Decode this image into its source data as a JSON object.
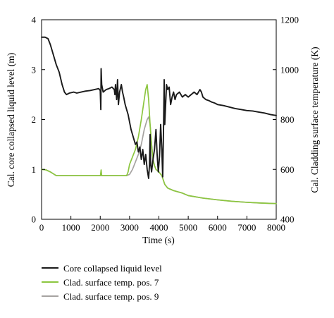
{
  "chart_data": {
    "type": "line",
    "xlabel": "Time (s)",
    "ylabel_left": "Cal. core collapsed liquid level (m)",
    "ylabel_right": "Cal. Cladding surface temperature (K)",
    "xlim": [
      0,
      8000
    ],
    "ylim_left": [
      0,
      4
    ],
    "ylim_right": [
      400,
      1200
    ],
    "x_ticks": [
      "0",
      "1000",
      "2000",
      "3000",
      "4000",
      "5000",
      "6000",
      "7000",
      "8000"
    ],
    "y_left_ticks": [
      "0",
      "1",
      "2",
      "3",
      "4"
    ],
    "y_right_ticks": [
      "400",
      "600",
      "800",
      "1000",
      "1200"
    ],
    "grid": false,
    "legend_position": "below",
    "series": [
      {
        "name": "Core collapsed liquid level",
        "axis": "left",
        "color": "#1a1a1a",
        "points": [
          [
            0,
            3.65
          ],
          [
            120,
            3.65
          ],
          [
            220,
            3.62
          ],
          [
            300,
            3.5
          ],
          [
            400,
            3.3
          ],
          [
            500,
            3.1
          ],
          [
            600,
            2.95
          ],
          [
            700,
            2.7
          ],
          [
            780,
            2.55
          ],
          [
            850,
            2.5
          ],
          [
            950,
            2.53
          ],
          [
            1100,
            2.55
          ],
          [
            1200,
            2.53
          ],
          [
            1350,
            2.55
          ],
          [
            1500,
            2.57
          ],
          [
            1650,
            2.58
          ],
          [
            1800,
            2.6
          ],
          [
            1950,
            2.62
          ],
          [
            2000,
            2.58
          ],
          [
            2020,
            2.2
          ],
          [
            2030,
            3.02
          ],
          [
            2050,
            2.7
          ],
          [
            2100,
            2.55
          ],
          [
            2200,
            2.6
          ],
          [
            2300,
            2.62
          ],
          [
            2400,
            2.65
          ],
          [
            2480,
            2.6
          ],
          [
            2500,
            2.5
          ],
          [
            2520,
            2.7
          ],
          [
            2560,
            2.4
          ],
          [
            2590,
            2.8
          ],
          [
            2620,
            2.3
          ],
          [
            2660,
            2.55
          ],
          [
            2720,
            2.7
          ],
          [
            2760,
            2.55
          ],
          [
            2800,
            2.45
          ],
          [
            2850,
            2.3
          ],
          [
            2900,
            2.2
          ],
          [
            2950,
            2.1
          ],
          [
            3000,
            1.95
          ],
          [
            3050,
            1.8
          ],
          [
            3100,
            1.7
          ],
          [
            3150,
            1.6
          ],
          [
            3200,
            1.5
          ],
          [
            3250,
            1.55
          ],
          [
            3300,
            1.35
          ],
          [
            3350,
            1.45
          ],
          [
            3400,
            1.2
          ],
          [
            3450,
            1.4
          ],
          [
            3500,
            1.1
          ],
          [
            3550,
            1.3
          ],
          [
            3600,
            1.0
          ],
          [
            3650,
            0.82
          ],
          [
            3680,
            1.1
          ],
          [
            3700,
            1.7
          ],
          [
            3720,
            1.1
          ],
          [
            3750,
            0.95
          ],
          [
            3800,
            1.2
          ],
          [
            3850,
            1.4
          ],
          [
            3900,
            1.8
          ],
          [
            3940,
            1.3
          ],
          [
            3980,
            0.95
          ],
          [
            4020,
            1.25
          ],
          [
            4060,
            1.9
          ],
          [
            4100,
            1.4
          ],
          [
            4130,
            0.85
          ],
          [
            4160,
            1.9
          ],
          [
            4180,
            2.8
          ],
          [
            4200,
            1.9
          ],
          [
            4230,
            2.3
          ],
          [
            4260,
            2.7
          ],
          [
            4300,
            2.6
          ],
          [
            4350,
            2.65
          ],
          [
            4400,
            2.3
          ],
          [
            4450,
            2.45
          ],
          [
            4500,
            2.55
          ],
          [
            4550,
            2.4
          ],
          [
            4600,
            2.5
          ],
          [
            4700,
            2.55
          ],
          [
            4800,
            2.45
          ],
          [
            4900,
            2.5
          ],
          [
            5000,
            2.45
          ],
          [
            5100,
            2.5
          ],
          [
            5200,
            2.55
          ],
          [
            5300,
            2.5
          ],
          [
            5400,
            2.6
          ],
          [
            5450,
            2.55
          ],
          [
            5500,
            2.45
          ],
          [
            5600,
            2.4
          ],
          [
            5700,
            2.38
          ],
          [
            5800,
            2.35
          ],
          [
            5900,
            2.33
          ],
          [
            6000,
            2.3
          ],
          [
            6200,
            2.28
          ],
          [
            6400,
            2.25
          ],
          [
            6600,
            2.22
          ],
          [
            6800,
            2.2
          ],
          [
            7000,
            2.18
          ],
          [
            7200,
            2.17
          ],
          [
            7400,
            2.15
          ],
          [
            7600,
            2.13
          ],
          [
            7800,
            2.1
          ],
          [
            8000,
            2.08
          ]
        ]
      },
      {
        "name": "Clad. surface temp. pos. 7",
        "axis": "right",
        "color": "#8cc63f",
        "points": [
          [
            0,
            600
          ],
          [
            150,
            598
          ],
          [
            300,
            590
          ],
          [
            500,
            575
          ],
          [
            700,
            575
          ],
          [
            1000,
            575
          ],
          [
            1500,
            575
          ],
          [
            2000,
            575
          ],
          [
            2010,
            578
          ],
          [
            2030,
            598
          ],
          [
            2050,
            575
          ],
          [
            2500,
            575
          ],
          [
            2900,
            575
          ],
          [
            2950,
            590
          ],
          [
            3000,
            620
          ],
          [
            3100,
            650
          ],
          [
            3200,
            680
          ],
          [
            3300,
            730
          ],
          [
            3400,
            800
          ],
          [
            3500,
            880
          ],
          [
            3550,
            920
          ],
          [
            3600,
            940
          ],
          [
            3650,
            880
          ],
          [
            3700,
            780
          ],
          [
            3750,
            700
          ],
          [
            3800,
            640
          ],
          [
            3850,
            615
          ],
          [
            3900,
            600
          ],
          [
            4000,
            590
          ],
          [
            4100,
            575
          ],
          [
            4200,
            540
          ],
          [
            4300,
            525
          ],
          [
            4500,
            515
          ],
          [
            4800,
            505
          ],
          [
            5000,
            495
          ],
          [
            5500,
            485
          ],
          [
            6000,
            478
          ],
          [
            6500,
            472
          ],
          [
            7000,
            468
          ],
          [
            7500,
            465
          ],
          [
            8000,
            463
          ]
        ]
      },
      {
        "name": "Clad. surface temp. pos. 9",
        "axis": "right",
        "color": "#a6a3a1",
        "points": [
          [
            0,
            600
          ],
          [
            150,
            598
          ],
          [
            300,
            590
          ],
          [
            500,
            575
          ],
          [
            700,
            575
          ],
          [
            1000,
            575
          ],
          [
            1500,
            575
          ],
          [
            2000,
            575
          ],
          [
            2500,
            575
          ],
          [
            2900,
            575
          ],
          [
            3000,
            580
          ],
          [
            3100,
            600
          ],
          [
            3200,
            630
          ],
          [
            3300,
            660
          ],
          [
            3400,
            700
          ],
          [
            3500,
            760
          ],
          [
            3600,
            800
          ],
          [
            3650,
            810
          ],
          [
            3700,
            780
          ],
          [
            3750,
            700
          ],
          [
            3800,
            640
          ],
          [
            3850,
            615
          ],
          [
            3900,
            600
          ],
          [
            4000,
            590
          ],
          [
            4100,
            575
          ],
          [
            4200,
            540
          ],
          [
            4300,
            525
          ],
          [
            4500,
            515
          ],
          [
            4800,
            505
          ],
          [
            5000,
            495
          ],
          [
            5500,
            485
          ],
          [
            6000,
            478
          ],
          [
            6500,
            472
          ],
          [
            7000,
            468
          ],
          [
            7500,
            465
          ],
          [
            8000,
            463
          ]
        ]
      }
    ]
  }
}
